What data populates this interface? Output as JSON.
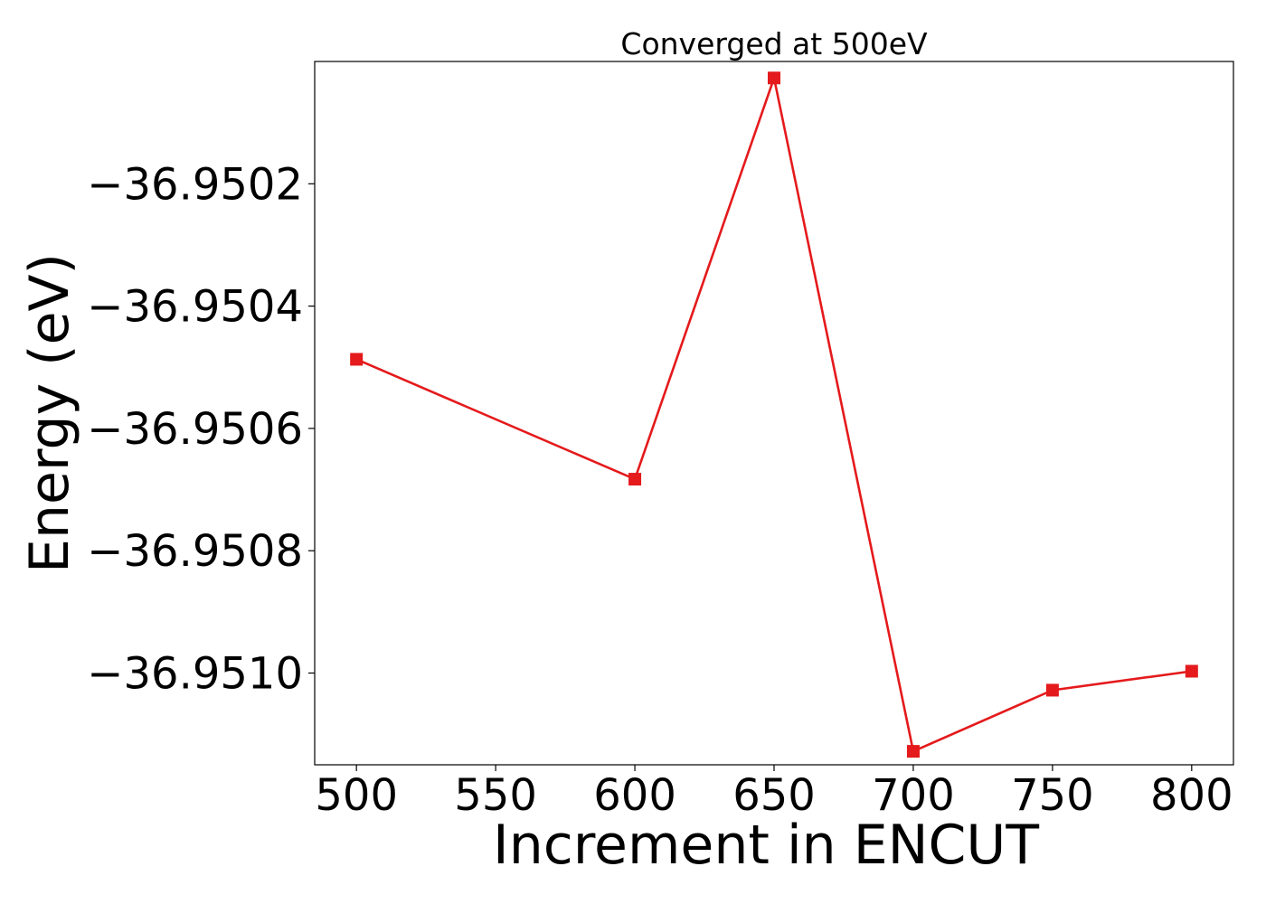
{
  "chart_data": {
    "type": "line",
    "title": "Converged at 500eV",
    "xlabel": "Increment in ENCUT",
    "ylabel": "Energy (eV)",
    "xlim": [
      485,
      815
    ],
    "ylim": [
      -36.95115,
      -36.95
    ],
    "x_ticks": [
      500,
      550,
      600,
      650,
      700,
      750,
      800
    ],
    "x_tick_labels": [
      "500",
      "550",
      "600",
      "650",
      "700",
      "750",
      "800"
    ],
    "y_ticks": [
      -36.9502,
      -36.9504,
      -36.9506,
      -36.9508,
      -36.951
    ],
    "y_tick_labels": [
      "−36.9502",
      "−36.9504",
      "−36.9506",
      "−36.9508",
      "−36.9510"
    ],
    "grid": false,
    "series": [
      {
        "color": "#e41a1c",
        "marker": "square",
        "x": [
          500,
          600,
          650,
          700,
          750,
          800
        ],
        "y": [
          -36.950487,
          -36.950683,
          -36.950027,
          -36.951128,
          -36.951028,
          -36.950997
        ]
      }
    ]
  }
}
